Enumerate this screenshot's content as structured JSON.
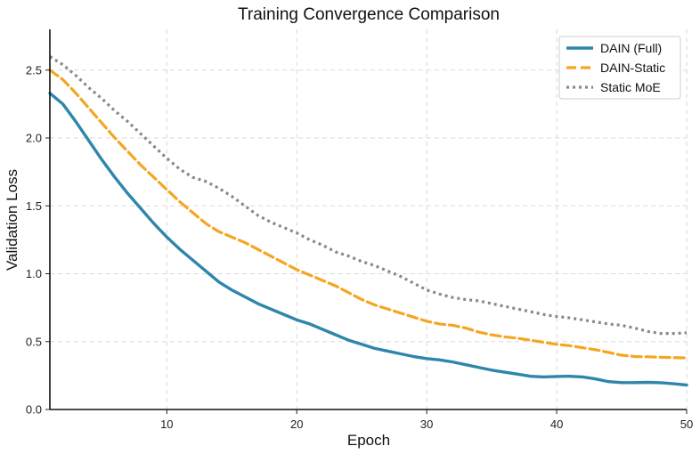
{
  "chart_data": {
    "type": "line",
    "title": "Training Convergence Comparison",
    "xlabel": "Epoch",
    "ylabel": "Validation Loss",
    "xlim": [
      1,
      50
    ],
    "ylim": [
      0,
      2.8
    ],
    "xticks": [
      10,
      20,
      30,
      40,
      50
    ],
    "yticks": [
      0.0,
      0.5,
      1.0,
      1.5,
      2.0,
      2.5
    ],
    "xtick_labels": [
      "10",
      "20",
      "30",
      "40",
      "50"
    ],
    "ytick_labels": [
      "0.0",
      "0.5",
      "1.0",
      "1.5",
      "2.0",
      "2.5"
    ],
    "grid": true,
    "legend_position": "top-right",
    "x": [
      1,
      2,
      3,
      4,
      5,
      6,
      7,
      8,
      9,
      10,
      11,
      12,
      13,
      14,
      15,
      16,
      17,
      18,
      19,
      20,
      21,
      22,
      23,
      24,
      25,
      26,
      27,
      28,
      29,
      30,
      31,
      32,
      33,
      34,
      35,
      36,
      37,
      38,
      39,
      40,
      41,
      42,
      43,
      44,
      45,
      46,
      47,
      48,
      49,
      50
    ],
    "series": [
      {
        "name": "DAIN (Full)",
        "color": "#2e86ab",
        "style": "solid",
        "values": [
          2.33,
          2.25,
          2.12,
          1.98,
          1.84,
          1.71,
          1.59,
          1.48,
          1.37,
          1.27,
          1.18,
          1.1,
          1.02,
          0.94,
          0.88,
          0.83,
          0.78,
          0.74,
          0.7,
          0.66,
          0.63,
          0.59,
          0.55,
          0.51,
          0.48,
          0.45,
          0.43,
          0.41,
          0.39,
          0.375,
          0.365,
          0.35,
          0.33,
          0.31,
          0.29,
          0.275,
          0.26,
          0.245,
          0.24,
          0.243,
          0.245,
          0.24,
          0.225,
          0.205,
          0.198,
          0.198,
          0.2,
          0.197,
          0.19,
          0.18
        ]
      },
      {
        "name": "DAIN-Static",
        "color": "#f4a621",
        "style": "dashed",
        "values": [
          2.5,
          2.43,
          2.33,
          2.22,
          2.11,
          2.0,
          1.9,
          1.8,
          1.71,
          1.62,
          1.53,
          1.45,
          1.37,
          1.31,
          1.27,
          1.23,
          1.18,
          1.13,
          1.08,
          1.03,
          0.99,
          0.95,
          0.91,
          0.86,
          0.81,
          0.77,
          0.74,
          0.71,
          0.68,
          0.65,
          0.63,
          0.62,
          0.6,
          0.57,
          0.55,
          0.535,
          0.525,
          0.51,
          0.495,
          0.48,
          0.47,
          0.455,
          0.44,
          0.42,
          0.4,
          0.39,
          0.388,
          0.385,
          0.382,
          0.38
        ]
      },
      {
        "name": "Static MoE",
        "color": "#888888",
        "style": "dotted",
        "values": [
          2.6,
          2.54,
          2.46,
          2.37,
          2.29,
          2.2,
          2.12,
          2.03,
          1.94,
          1.85,
          1.77,
          1.71,
          1.68,
          1.63,
          1.57,
          1.5,
          1.43,
          1.38,
          1.34,
          1.3,
          1.25,
          1.21,
          1.16,
          1.13,
          1.09,
          1.06,
          1.02,
          0.98,
          0.93,
          0.88,
          0.85,
          0.825,
          0.81,
          0.8,
          0.78,
          0.76,
          0.74,
          0.72,
          0.7,
          0.685,
          0.675,
          0.66,
          0.645,
          0.63,
          0.62,
          0.6,
          0.575,
          0.56,
          0.56,
          0.565
        ]
      }
    ]
  }
}
